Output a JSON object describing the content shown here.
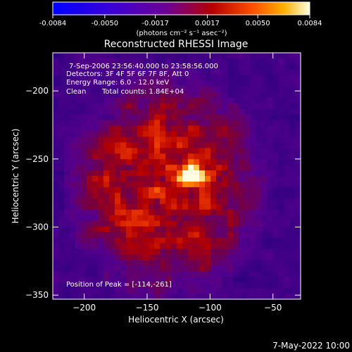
{
  "chart_data": {
    "type": "heatmap",
    "title": "Reconstructed RHESSI Image",
    "xlabel": "Heliocentric X (arcsec)",
    "ylabel": "Heliocentric Y (arcsec)",
    "xlim": [
      -225,
      -28
    ],
    "ylim": [
      -353,
      -172
    ],
    "xticks": [
      -200,
      -150,
      -100,
      -50
    ],
    "yticks": [
      -200,
      -250,
      -300,
      -350
    ],
    "colorbar": {
      "min": -0.0084,
      "max": 0.0084,
      "tick_values": [
        -0.0084,
        -0.005,
        -0.0017,
        0.0017,
        0.005,
        0.0084
      ],
      "tick_labels": [
        "-0.0084",
        "-0.0050",
        "-0.0017",
        "0.0017",
        "0.0050",
        "0.0084"
      ],
      "unit_label": "(photons cm⁻² s⁻¹ asec⁻²)"
    },
    "annotations": {
      "time_range": "7-Sep-2006 23:56:40.000 to 23:58:56.000",
      "detectors": "Detectors: 3F 4F 5F 6F 7F 8F, Att 0",
      "energy_range": "Energy Range: 6.0 - 12.0 keV",
      "clean": "Clean",
      "total_counts": "Total counts: 1.84E+04",
      "peak": "Position of Peak = [-114,-261]"
    },
    "peak": {
      "x": -114,
      "y": -261
    },
    "grid": false
  },
  "footer_date": "7-May-2022 10:00"
}
